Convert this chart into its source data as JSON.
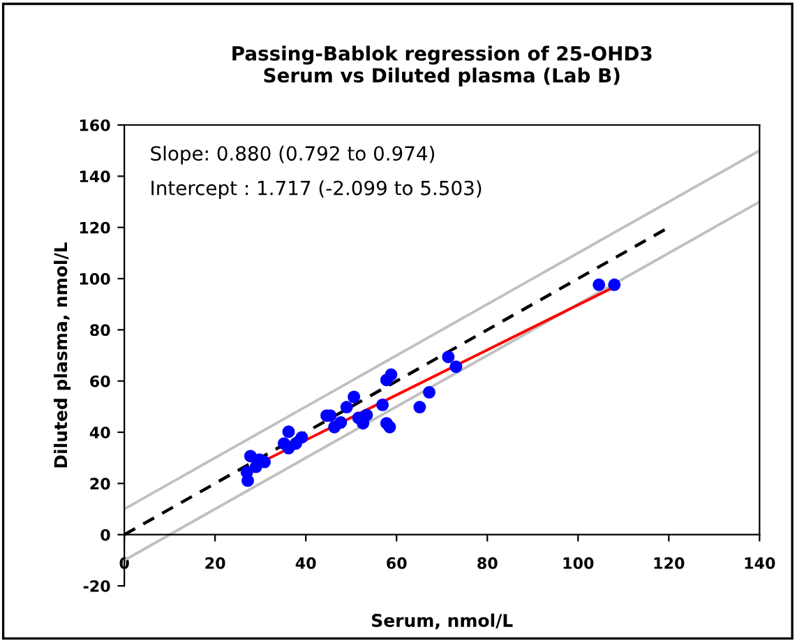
{
  "chart_data": {
    "type": "scatter",
    "title": "Passing-Bablok regression of 25-OHD3\nSerum vs Diluted plasma (Lab B)",
    "xlabel": "Serum, nmol/L",
    "ylabel": "Diluted plasma, nmol/L",
    "annotations": [
      "Slope: 0.880 (0.792 to 0.974)",
      "Intercept : 1.717 (-2.099 to 5.503)"
    ],
    "xlim": [
      0,
      140
    ],
    "ylim": [
      -20,
      160
    ],
    "xticks": [
      0,
      20,
      40,
      60,
      80,
      100,
      120,
      140
    ],
    "yticks": [
      -20,
      0,
      20,
      40,
      60,
      80,
      100,
      120,
      140,
      160
    ],
    "grid": false,
    "legend": false,
    "series": [
      {
        "type": "line",
        "color": "#c0c0c0",
        "line_style": "solid",
        "marker": "none",
        "x": [
          0,
          140
        ],
        "values": [
          10,
          150
        ]
      },
      {
        "type": "line",
        "color": "#c0c0c0",
        "line_style": "solid",
        "marker": "none",
        "x": [
          0,
          140
        ],
        "values": [
          -10,
          130
        ]
      },
      {
        "type": "line",
        "color": "#000000",
        "line_style": "dashed",
        "marker": "none",
        "x": [
          0,
          120
        ],
        "values": [
          0,
          120
        ]
      },
      {
        "type": "line",
        "color": "#ff0000",
        "line_style": "solid",
        "marker": "none",
        "x": [
          28,
          108
        ],
        "values": [
          26.4,
          96.8
        ]
      },
      {
        "color": "#0000ff",
        "marker": "circle",
        "x": [
          27.2,
          27.0,
          27.8,
          29.0,
          29.8,
          30.9,
          36.2,
          35.2,
          36.2,
          37.8,
          39.1,
          44.6,
          45.4,
          46.3,
          47.7,
          49.0,
          50.6,
          51.6,
          52.6,
          53.4,
          56.9,
          57.8,
          58.5,
          57.8,
          58.8,
          65.1,
          67.2,
          71.4,
          73.1,
          104.6,
          108.0
        ],
        "values": [
          21.1,
          24.4,
          30.7,
          26.5,
          29.3,
          28.4,
          40.2,
          35.6,
          33.8,
          35.6,
          38.0,
          46.5,
          46.5,
          42.0,
          43.8,
          49.8,
          53.8,
          45.6,
          43.5,
          46.7,
          50.7,
          43.5,
          42.0,
          60.4,
          62.5,
          49.8,
          55.6,
          69.4,
          65.6,
          97.6,
          97.6
        ]
      }
    ]
  }
}
